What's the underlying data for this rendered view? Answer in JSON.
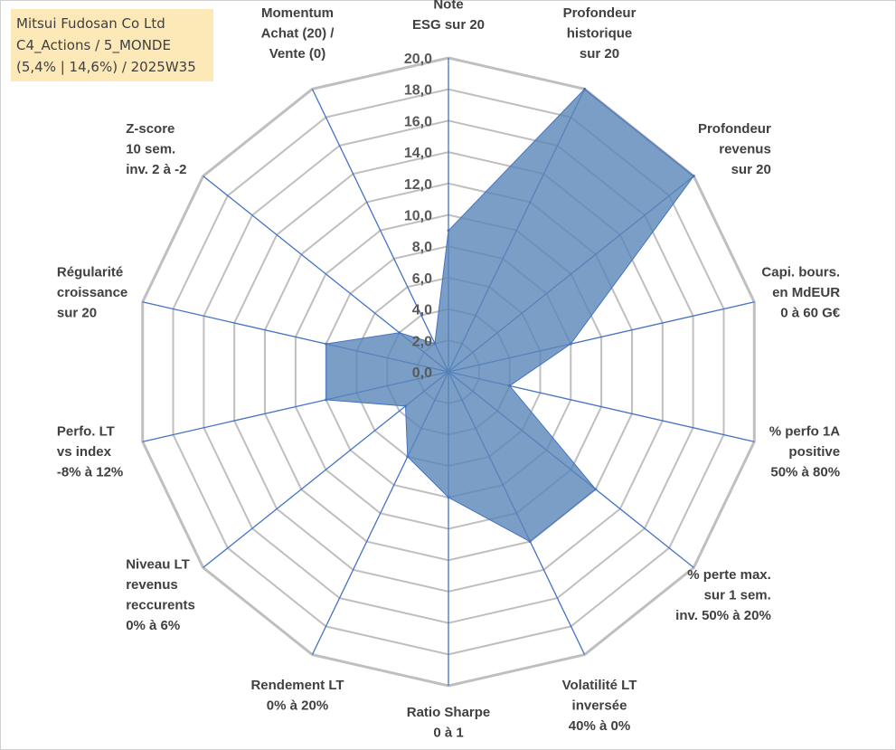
{
  "title_box": {
    "lines": [
      "Mitsui Fudosan Co Ltd",
      "C4_Actions / 5_MONDE",
      "(5,4% | 14,6%) / 2025W35"
    ]
  },
  "colors": {
    "fill": "#5a86b8",
    "grid": "#bfbfbf",
    "spoke": "#4472c4",
    "title_bg": "#fde8b8"
  },
  "chart_data": {
    "type": "radar",
    "rmin": 0,
    "rmax": 20,
    "tick_step": 2,
    "tick_labels": [
      "0,0",
      "2,0",
      "4,0",
      "6,0",
      "8,0",
      "10,0",
      "12,0",
      "14,0",
      "16,0",
      "18,0",
      "20,0"
    ],
    "axes": [
      {
        "label": [
          "Note",
          "ESG sur 20"
        ],
        "value": 9.0
      },
      {
        "label": [
          "Profondeur",
          "historique",
          "sur 20"
        ],
        "value": 20.0
      },
      {
        "label": [
          "Profondeur",
          "revenus",
          "sur 20"
        ],
        "value": 20.0
      },
      {
        "label": [
          "Capi. bours.",
          "en MdEUR",
          "0 à 60 G€"
        ],
        "value": 8.0
      },
      {
        "label": [
          "% perfo 1A",
          "positive",
          "50% à 80%"
        ],
        "value": 4.0
      },
      {
        "label": [
          "% perte max.",
          "sur 1 sem.",
          "inv. 50% à 20%"
        ],
        "value": 12.0
      },
      {
        "label": [
          "Volatilité LT",
          "inversée",
          "40% à 0%"
        ],
        "value": 12.0
      },
      {
        "label": [
          "Ratio Sharpe",
          "0 à 1"
        ],
        "value": 8.0
      },
      {
        "label": [
          "Rendement LT",
          "0% à 20%"
        ],
        "value": 6.0
      },
      {
        "label": [
          "Niveau LT",
          "revenus",
          "reccurents",
          "0% à 6%"
        ],
        "value": 3.5
      },
      {
        "label": [
          "Perfo. LT",
          "vs index",
          "-8% à 12%"
        ],
        "value": 8.0
      },
      {
        "label": [
          "Régularité",
          "croissance",
          "sur 20"
        ],
        "value": 8.0
      },
      {
        "label": [
          "Z-score",
          "10 sem.",
          "inv. 2 à -2"
        ],
        "value": 4.0
      },
      {
        "label": [
          "Momentum",
          "Achat (20) /",
          "Vente (0)"
        ],
        "value": 2.0
      }
    ]
  }
}
